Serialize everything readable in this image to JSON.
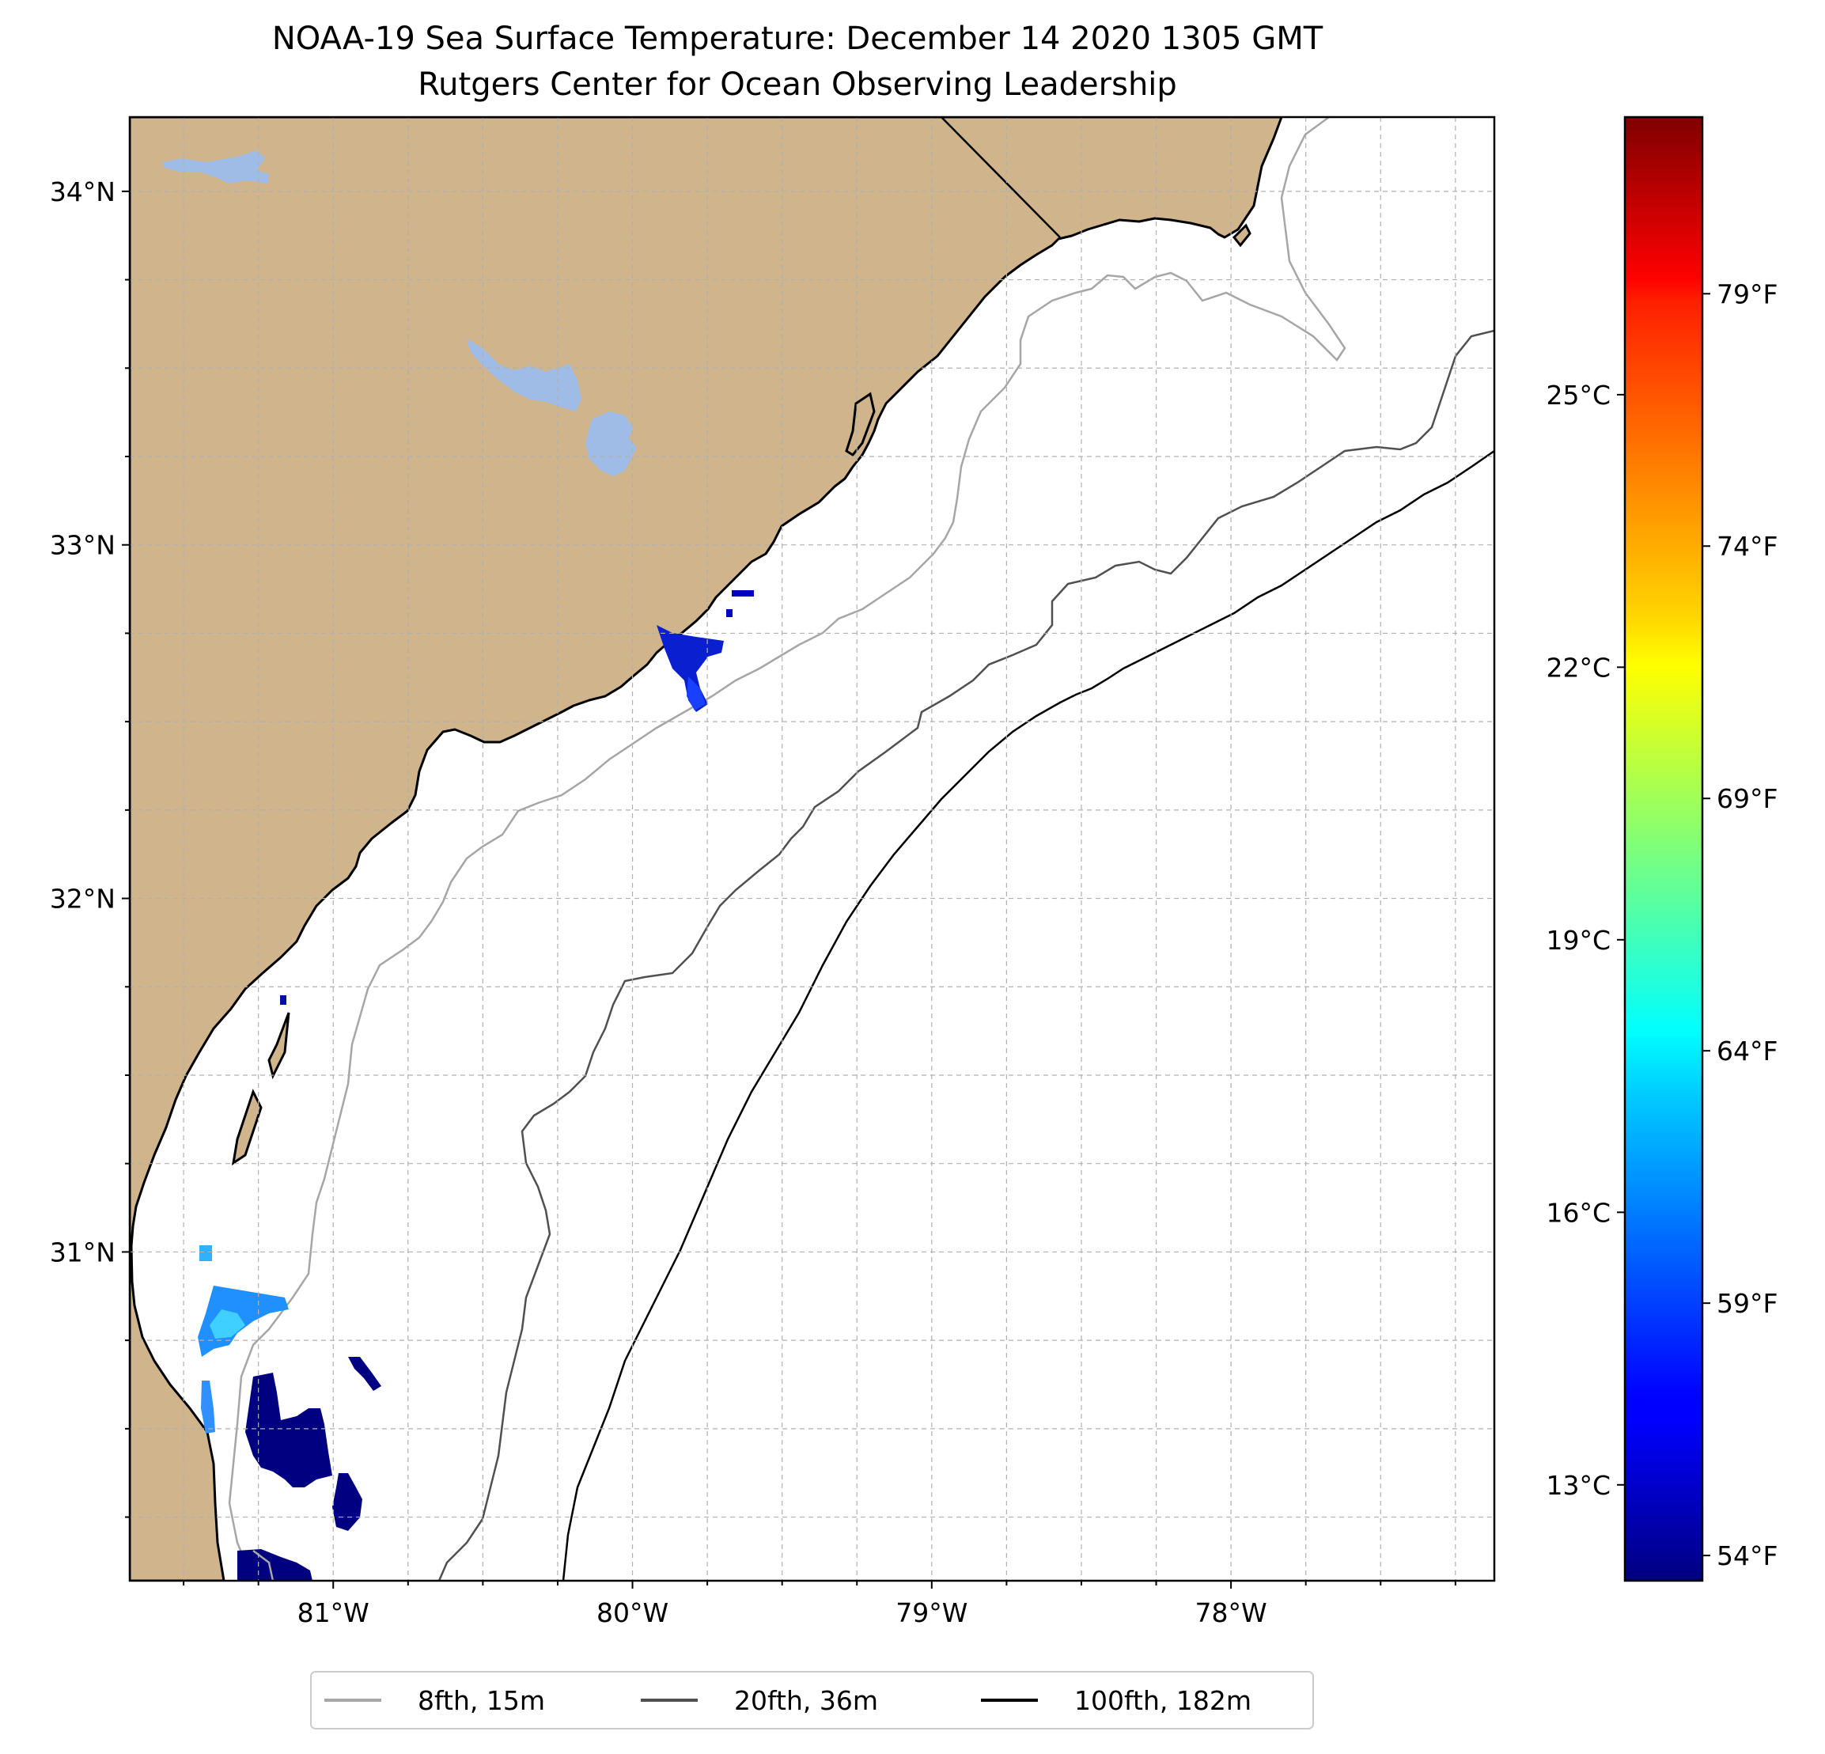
{
  "title": {
    "line1": "NOAA-19 Sea Surface Temperature: December 14 2020 1305 GMT",
    "line2": "Rutgers Center for Ocean Observing Leadership"
  },
  "map": {
    "extent": {
      "lon_min": -81.68,
      "lon_max": -77.12,
      "lat_min": 30.07,
      "lat_max": 34.21
    },
    "lat_ticks": [
      {
        "value": 34,
        "label": "34°N"
      },
      {
        "value": 33,
        "label": "33°N"
      },
      {
        "value": 32,
        "label": "32°N"
      },
      {
        "value": 31,
        "label": "31°N"
      }
    ],
    "lon_ticks": [
      {
        "value": -81,
        "label": "81°W"
      },
      {
        "value": -80,
        "label": "80°W"
      },
      {
        "value": -79,
        "label": "79°W"
      },
      {
        "value": -78,
        "label": "78°W"
      }
    ],
    "gridlines": true,
    "land_color": "#d0b48c",
    "lake_color": "#9fbce6",
    "ocean_color": "#ffffff"
  },
  "legend": {
    "position": "bottom-center",
    "entries": [
      {
        "label": "8fth, 15m",
        "color": "#a6a6a6"
      },
      {
        "label": "20fth, 36m",
        "color": "#505050"
      },
      {
        "label": "100fth, 182m",
        "color": "#000000"
      }
    ]
  },
  "colorbar": {
    "colormap": "jet",
    "range_f": [
      53.5,
      82.5
    ],
    "celsius_ticks": [
      {
        "value_c": 13,
        "label": "13°C"
      },
      {
        "value_c": 16,
        "label": "16°C"
      },
      {
        "value_c": 19,
        "label": "19°C"
      },
      {
        "value_c": 22,
        "label": "22°C"
      },
      {
        "value_c": 25,
        "label": "25°C"
      }
    ],
    "fahrenheit_ticks": [
      {
        "value_f": 54,
        "label": "54°F"
      },
      {
        "value_f": 59,
        "label": "59°F"
      },
      {
        "value_f": 64,
        "label": "64°F"
      },
      {
        "value_f": 69,
        "label": "69°F"
      },
      {
        "value_f": 74,
        "label": "74°F"
      },
      {
        "value_f": 79,
        "label": "79°F"
      }
    ]
  }
}
